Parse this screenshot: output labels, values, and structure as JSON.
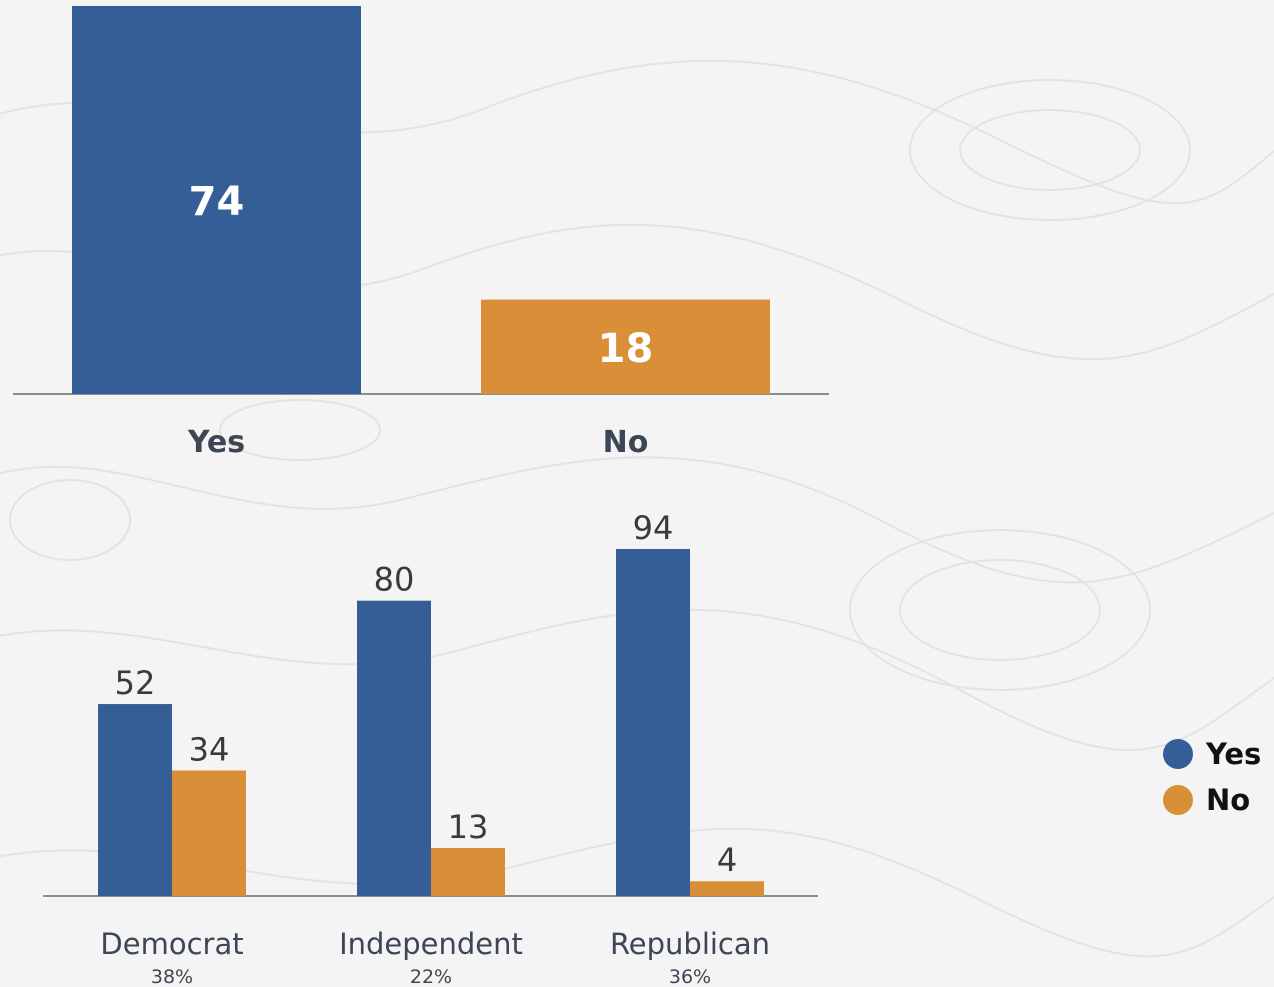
{
  "colors": {
    "yes": "#365e96",
    "no": "#d98f37",
    "axis": "#8c8c8c",
    "text": "#3c4654"
  },
  "legend": {
    "items": [
      {
        "label": "Yes",
        "key": "yes"
      },
      {
        "label": "No",
        "key": "no"
      }
    ]
  },
  "chart_data": [
    {
      "type": "bar",
      "categories": [
        "Yes",
        "No"
      ],
      "values": [
        74,
        18
      ],
      "ylim": [
        0,
        74
      ]
    },
    {
      "type": "bar",
      "categories": [
        "Democrat",
        "Independent",
        "Republican"
      ],
      "category_shares": [
        "38%",
        "22%",
        "36%"
      ],
      "series": [
        {
          "name": "Yes",
          "values": [
            52,
            80,
            94
          ]
        },
        {
          "name": "No",
          "values": [
            34,
            13,
            4
          ]
        }
      ],
      "ylim": [
        0,
        94
      ],
      "legend_position": "right"
    }
  ]
}
